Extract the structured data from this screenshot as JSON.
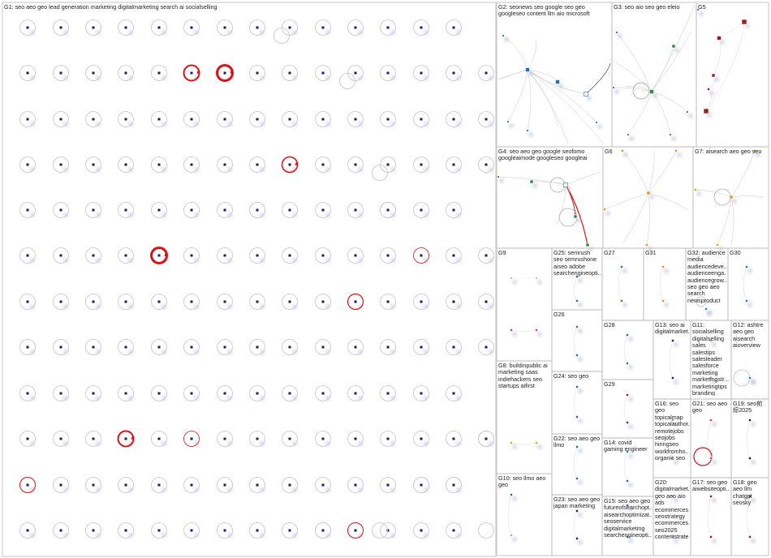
{
  "groups": [
    {
      "id": "G1",
      "label": "G1: seo aeo geo lead generation marketing digitalmarketing search ai socialselling"
    },
    {
      "id": "G2",
      "label": "G2: seonews seo google seo geo googleseo content llm aio microsoft"
    },
    {
      "id": "G3",
      "label": "G3: seo aio seo geo eleio"
    },
    {
      "id": "G5",
      "label": "G5"
    },
    {
      "id": "G4",
      "label": "G4: seo aeo geo google seofomo googleaimode googleseo googleai"
    },
    {
      "id": "G6",
      "label": "G6"
    },
    {
      "id": "G7",
      "label": "G7: aisearch aeo geo seo"
    },
    {
      "id": "G9",
      "label": "G9"
    },
    {
      "id": "G25",
      "label": "G25: semrush seo semrushone aiseo adobe searchengineopti..."
    },
    {
      "id": "G27",
      "label": "G27"
    },
    {
      "id": "G31",
      "label": "G31"
    },
    {
      "id": "G32",
      "label": "G32: audience media audiencedeve... audienceenga... audiencegrow... seo geo aeo search newsproduct"
    },
    {
      "id": "G30",
      "label": "G30"
    },
    {
      "id": "G26",
      "label": "G26"
    },
    {
      "id": "G28",
      "label": "G28"
    },
    {
      "id": "G13",
      "label": "G13: seo ai digitalmarket..."
    },
    {
      "id": "G11",
      "label": "G11: socialselling digitalselling sales salestips salesleader salesforce marketing marketingstr... marketingtips branding"
    },
    {
      "id": "G12",
      "label": "G12: ashtre aeo geo aisearch aioverview"
    },
    {
      "id": "G8",
      "label": "G8: buildinpublic ai marketing saas indiehackers seo startups aifirst"
    },
    {
      "id": "G24",
      "label": "G24: seo geo"
    },
    {
      "id": "G29",
      "label": "G29"
    },
    {
      "id": "G16",
      "label": "G16: seo geo topicalmap topicalauthor... remotejobs seojobs hiringseo workfromho... organic seo"
    },
    {
      "id": "G21",
      "label": "G21: seo aeo geo"
    },
    {
      "id": "G19",
      "label": "G19: seo前 綜2025"
    },
    {
      "id": "G22",
      "label": "G22: seo aeo geo llmo"
    },
    {
      "id": "G14",
      "label": "G14: covid gaming engineer"
    },
    {
      "id": "G10",
      "label": "G10: seo llmo aeo geo"
    },
    {
      "id": "G23",
      "label": "G23: seo aeo geo japan marketing"
    },
    {
      "id": "G15",
      "label": "G15: seo aeo geo futureofsearchopt... aisearchoptimizat... seoservice digitalmarketing searchengineopti..."
    },
    {
      "id": "G20",
      "label": "G20: digitalmarket... geo aeo aio ads ecommerces... seostrategy ecommerces... seo2025 contentstrate..."
    },
    {
      "id": "G17",
      "label": "G17: seo geo aiwebsiteopti..."
    },
    {
      "id": "G18",
      "label": "G18: geo aeo llm chatgpt seosky"
    }
  ],
  "colors": {
    "node": "#1a1a6e",
    "loop_light": "#c4c4c4",
    "loop_red": "#dd1111",
    "edge": "#c9c9c9",
    "green": "#2e8b3a",
    "blue": "#1f6fb8",
    "orange": "#e8941a",
    "darkred": "#9b1d1d",
    "pink": "#d0408f",
    "teal": "#1a8a8a",
    "yellow": "#c8b400",
    "border": "#b8b8b8"
  }
}
